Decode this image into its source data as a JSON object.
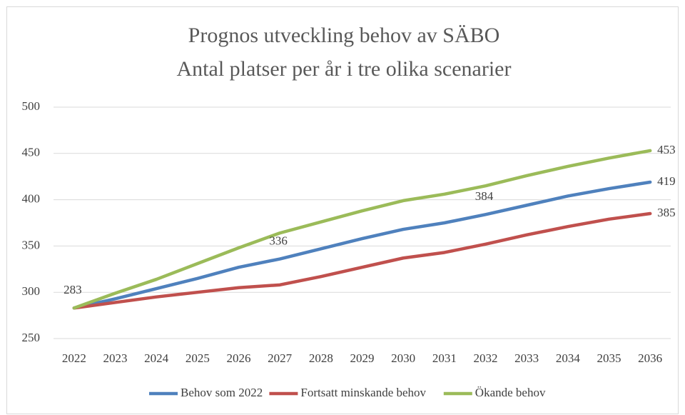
{
  "chart_data": {
    "type": "line",
    "title": "Prognos utveckling behov av SÄBO",
    "subtitle": "Antal platser per år i tre olika scenarier",
    "categories": [
      "2022",
      "2023",
      "2024",
      "2025",
      "2026",
      "2027",
      "2028",
      "2029",
      "2030",
      "2031",
      "2032",
      "2033",
      "2034",
      "2035",
      "2036"
    ],
    "series": [
      {
        "name": "Behov som 2022",
        "color": "#4f81bd",
        "values": [
          283,
          293,
          304,
          315,
          327,
          336,
          347,
          358,
          368,
          375,
          384,
          394,
          404,
          412,
          419
        ],
        "value_labels": [
          "283",
          null,
          null,
          null,
          null,
          "336",
          null,
          null,
          null,
          null,
          "384",
          null,
          null,
          null,
          "419"
        ]
      },
      {
        "name": "Fortsatt minskande behov",
        "color": "#c0504d",
        "values": [
          283,
          289,
          295,
          300,
          305,
          308,
          317,
          327,
          337,
          343,
          352,
          362,
          371,
          379,
          385
        ],
        "value_labels": [
          null,
          null,
          null,
          null,
          null,
          null,
          null,
          null,
          null,
          null,
          null,
          null,
          null,
          null,
          "385"
        ]
      },
      {
        "name": "Ökande behov",
        "color": "#9bbb59",
        "values": [
          283,
          299,
          314,
          331,
          348,
          364,
          376,
          388,
          399,
          406,
          415,
          426,
          436,
          445,
          453
        ],
        "value_labels": [
          null,
          null,
          null,
          null,
          null,
          null,
          null,
          null,
          null,
          null,
          null,
          null,
          null,
          null,
          "453"
        ]
      }
    ],
    "ylim": [
      250,
      500
    ],
    "yticks": [
      250,
      300,
      350,
      400,
      450,
      500
    ],
    "grid": true,
    "legend": "bottom"
  }
}
